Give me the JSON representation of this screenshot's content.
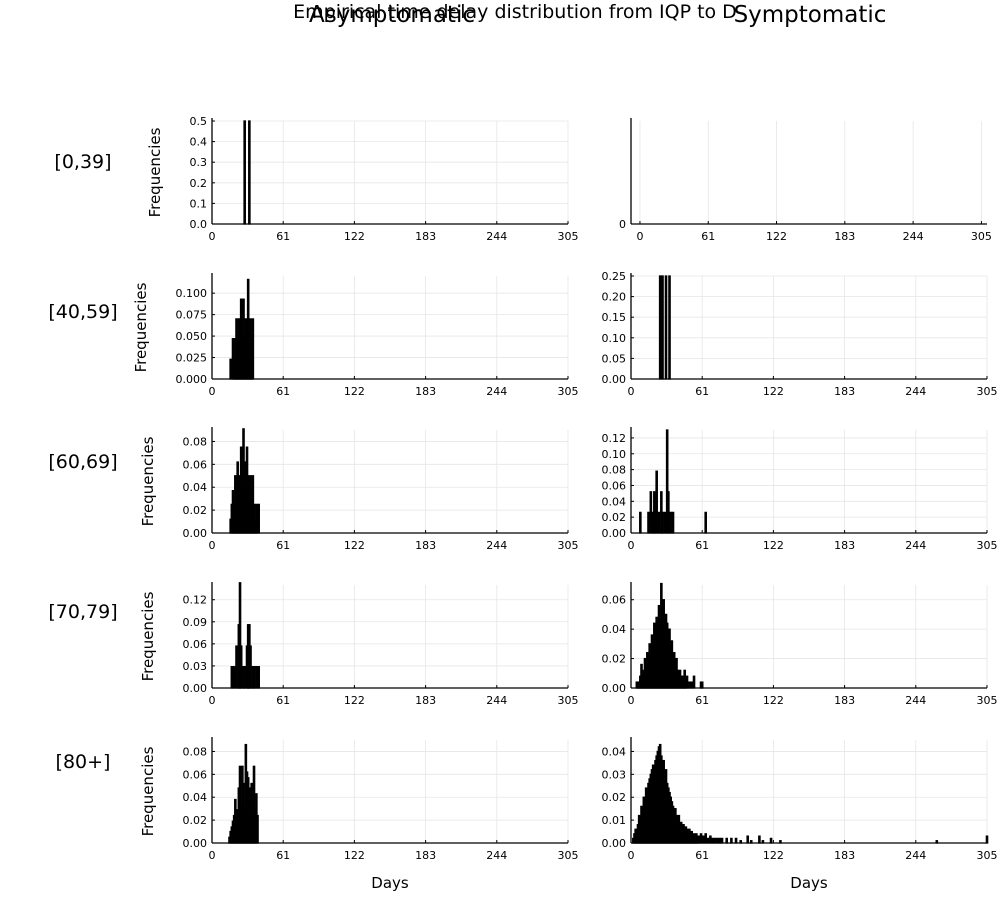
{
  "figure": {
    "title": "Empirical time delay distribution from IQP to D",
    "column_titles": [
      "Asymptomatic",
      "Symptomatic"
    ],
    "row_labels": [
      "[0,39]",
      "[40,59]",
      "[60,69]",
      "[70,79]",
      "[80+]"
    ],
    "ylabel": "Frequencies",
    "xlabel": "Days"
  },
  "style": {
    "bar_color": "#000000",
    "grid_color": "#e6e6e6",
    "axis_color": "#000000"
  },
  "chart_data": [
    {
      "type": "bar",
      "row_label": "[0,39]",
      "column_title": "Asymptomatic",
      "xlim": [
        0,
        305
      ],
      "ylim": [
        0,
        0.5
      ],
      "xticks": [
        0,
        61,
        122,
        183,
        244,
        305
      ],
      "yticks": [
        0.0,
        0.1,
        0.2,
        0.3,
        0.4,
        0.5
      ],
      "ytick_labels": [
        "0.0",
        "0.1",
        "0.2",
        "0.3",
        "0.4",
        "0.5"
      ],
      "grid": true,
      "ylabel": "Frequencies",
      "xlabel": "",
      "x": [
        28,
        32
      ],
      "values": [
        0.5,
        0.5
      ]
    },
    {
      "type": "bar",
      "row_label": "[0,39]",
      "column_title": "Symptomatic",
      "xlim": [
        -8,
        310
      ],
      "ylim": [
        0,
        1
      ],
      "xticks": [
        0,
        61,
        122,
        183,
        244,
        305
      ],
      "yticks": [
        0
      ],
      "ytick_labels": [
        "0"
      ],
      "grid": true,
      "ylabel": "",
      "xlabel": "",
      "x": [],
      "values": []
    },
    {
      "type": "bar",
      "row_label": "[40,59]",
      "column_title": "Asymptomatic",
      "xlim": [
        0,
        305
      ],
      "ylim": [
        0,
        0.12
      ],
      "xticks": [
        0,
        61,
        122,
        183,
        244,
        305
      ],
      "yticks": [
        0.0,
        0.025,
        0.05,
        0.075,
        0.1
      ],
      "ytick_labels": [
        "0.000",
        "0.025",
        "0.050",
        "0.075",
        "0.100"
      ],
      "grid": true,
      "ylabel": "Frequencies",
      "xlabel": "",
      "x": [
        16,
        18,
        19,
        20,
        21,
        22,
        23,
        24,
        25,
        26,
        27,
        28,
        29,
        30,
        31,
        32,
        33,
        34,
        35
      ],
      "values": [
        0.023,
        0.047,
        0.023,
        0.047,
        0.07,
        0.047,
        0.07,
        0.023,
        0.093,
        0.047,
        0.093,
        0.047,
        0.07,
        0.047,
        0.116,
        0.023,
        0.07,
        0.047,
        0.07
      ]
    },
    {
      "type": "bar",
      "row_label": "[40,59]",
      "column_title": "Symptomatic",
      "xlim": [
        0,
        305
      ],
      "ylim": [
        0,
        0.25
      ],
      "xticks": [
        0,
        61,
        122,
        183,
        244,
        305
      ],
      "yticks": [
        0.0,
        0.05,
        0.1,
        0.15,
        0.2,
        0.25
      ],
      "ytick_labels": [
        "0.00",
        "0.05",
        "0.10",
        "0.15",
        "0.20",
        "0.25"
      ],
      "grid": true,
      "ylabel": "",
      "xlabel": "",
      "x": [
        25,
        27,
        30,
        33
      ],
      "values": [
        0.25,
        0.25,
        0.25,
        0.25
      ]
    },
    {
      "type": "bar",
      "row_label": "[60,69]",
      "column_title": "Asymptomatic",
      "xlim": [
        0,
        305
      ],
      "ylim": [
        0,
        0.09
      ],
      "xticks": [
        0,
        61,
        122,
        183,
        244,
        305
      ],
      "yticks": [
        0.0,
        0.02,
        0.04,
        0.06,
        0.08
      ],
      "ytick_labels": [
        "0.00",
        "0.02",
        "0.04",
        "0.06",
        "0.08"
      ],
      "grid": true,
      "ylabel": "Frequencies",
      "xlabel": "",
      "x": [
        16,
        17,
        18,
        19,
        20,
        21,
        22,
        23,
        24,
        25,
        26,
        27,
        28,
        29,
        30,
        31,
        32,
        33,
        34,
        35,
        36,
        37,
        38,
        39,
        40
      ],
      "values": [
        0.012,
        0.025,
        0.037,
        0.025,
        0.05,
        0.037,
        0.062,
        0.05,
        0.037,
        0.075,
        0.05,
        0.091,
        0.062,
        0.037,
        0.075,
        0.05,
        0.025,
        0.05,
        0.037,
        0.05,
        0.025,
        0.012,
        0.025,
        0.012,
        0.025
      ]
    },
    {
      "type": "bar",
      "row_label": "[60,69]",
      "column_title": "Symptomatic",
      "xlim": [
        0,
        305
      ],
      "ylim": [
        0,
        0.13
      ],
      "xticks": [
        0,
        61,
        122,
        183,
        244,
        305
      ],
      "yticks": [
        0.0,
        0.02,
        0.04,
        0.06,
        0.08,
        0.1,
        0.12
      ],
      "ytick_labels": [
        "0.00",
        "0.02",
        "0.04",
        "0.06",
        "0.08",
        "0.10",
        "0.12"
      ],
      "grid": true,
      "ylabel": "",
      "xlabel": "",
      "x": [
        8,
        15,
        17,
        19,
        20,
        22,
        24,
        26,
        27,
        29,
        31,
        32,
        34,
        36,
        64
      ],
      "values": [
        0.026,
        0.026,
        0.052,
        0.026,
        0.052,
        0.078,
        0.026,
        0.052,
        0.026,
        0.026,
        0.13,
        0.052,
        0.026,
        0.026,
        0.026
      ]
    },
    {
      "type": "bar",
      "row_label": "[70,79]",
      "column_title": "Asymptomatic",
      "xlim": [
        0,
        305
      ],
      "ylim": [
        0,
        0.14
      ],
      "xticks": [
        0,
        61,
        122,
        183,
        244,
        305
      ],
      "yticks": [
        0.0,
        0.03,
        0.06,
        0.09,
        0.12
      ],
      "ytick_labels": [
        "0.00",
        "0.03",
        "0.06",
        "0.09",
        "0.12"
      ],
      "grid": true,
      "ylabel": "Frequencies",
      "xlabel": "",
      "x": [
        17,
        19,
        21,
        23,
        24,
        25,
        27,
        28,
        30,
        31,
        32,
        33,
        35,
        36,
        38,
        40
      ],
      "values": [
        0.029,
        0.029,
        0.057,
        0.086,
        0.143,
        0.057,
        0.029,
        0.029,
        0.057,
        0.086,
        0.086,
        0.057,
        0.029,
        0.029,
        0.029,
        0.029
      ]
    },
    {
      "type": "bar",
      "row_label": "[70,79]",
      "column_title": "Symptomatic",
      "xlim": [
        0,
        305
      ],
      "ylim": [
        0,
        0.07
      ],
      "xticks": [
        0,
        61,
        122,
        183,
        244,
        305
      ],
      "yticks": [
        0.0,
        0.02,
        0.04,
        0.06
      ],
      "ytick_labels": [
        "0.00",
        "0.02",
        "0.04",
        "0.06"
      ],
      "grid": true,
      "ylabel": "",
      "xlabel": "",
      "x": [
        5,
        6,
        7,
        8,
        9,
        10,
        11,
        12,
        13,
        14,
        15,
        16,
        17,
        18,
        19,
        20,
        21,
        22,
        23,
        24,
        25,
        26,
        27,
        28,
        29,
        30,
        31,
        32,
        33,
        34,
        35,
        36,
        37,
        38,
        39,
        40,
        41,
        42,
        43,
        44,
        45,
        46,
        47,
        48,
        50,
        52,
        54,
        60,
        61
      ],
      "values": [
        0.004,
        0.004,
        0.004,
        0.008,
        0.016,
        0.008,
        0.012,
        0.02,
        0.016,
        0.024,
        0.02,
        0.03,
        0.024,
        0.036,
        0.028,
        0.044,
        0.036,
        0.048,
        0.04,
        0.056,
        0.048,
        0.071,
        0.052,
        0.06,
        0.04,
        0.05,
        0.044,
        0.036,
        0.04,
        0.028,
        0.032,
        0.02,
        0.024,
        0.016,
        0.02,
        0.012,
        0.008,
        0.012,
        0.008,
        0.008,
        0.004,
        0.012,
        0.004,
        0.008,
        0.004,
        0.004,
        0.008,
        0.004,
        0.004
      ]
    },
    {
      "type": "bar",
      "row_label": "[80+]",
      "column_title": "Asymptomatic",
      "xlim": [
        0,
        305
      ],
      "ylim": [
        0,
        0.09
      ],
      "xticks": [
        0,
        61,
        122,
        183,
        244,
        305
      ],
      "yticks": [
        0.0,
        0.02,
        0.04,
        0.06,
        0.08
      ],
      "ytick_labels": [
        "0.00",
        "0.02",
        "0.04",
        "0.06",
        "0.08"
      ],
      "grid": true,
      "ylabel": "Frequencies",
      "xlabel": "Days",
      "x": [
        15,
        16,
        17,
        18,
        19,
        20,
        21,
        22,
        23,
        24,
        25,
        26,
        27,
        28,
        29,
        30,
        31,
        32,
        33,
        34,
        35,
        36,
        37,
        38,
        39
      ],
      "values": [
        0.005,
        0.01,
        0.014,
        0.019,
        0.024,
        0.038,
        0.014,
        0.029,
        0.048,
        0.067,
        0.033,
        0.067,
        0.052,
        0.029,
        0.086,
        0.062,
        0.057,
        0.048,
        0.038,
        0.052,
        0.024,
        0.067,
        0.029,
        0.043,
        0.024
      ]
    },
    {
      "type": "bar",
      "row_label": "[80+]",
      "column_title": "Symptomatic",
      "xlim": [
        0,
        305
      ],
      "ylim": [
        0,
        0.045
      ],
      "xticks": [
        0,
        61,
        122,
        183,
        244,
        305
      ],
      "yticks": [
        0.0,
        0.01,
        0.02,
        0.03,
        0.04
      ],
      "ytick_labels": [
        "0.00",
        "0.01",
        "0.02",
        "0.03",
        "0.04"
      ],
      "grid": true,
      "ylabel": "",
      "xlabel": "Days",
      "x": [
        2,
        3,
        4,
        5,
        6,
        7,
        8,
        9,
        10,
        11,
        12,
        13,
        14,
        15,
        16,
        17,
        18,
        19,
        20,
        21,
        22,
        23,
        24,
        25,
        26,
        27,
        28,
        29,
        30,
        31,
        32,
        33,
        34,
        35,
        36,
        37,
        38,
        39,
        40,
        41,
        42,
        43,
        44,
        45,
        46,
        47,
        48,
        49,
        50,
        51,
        52,
        53,
        54,
        55,
        56,
        57,
        58,
        60,
        62,
        64,
        66,
        68,
        70,
        72,
        74,
        76,
        78,
        82,
        86,
        90,
        94,
        100,
        103,
        110,
        113,
        120,
        128,
        262,
        305
      ],
      "values": [
        0.002,
        0.004,
        0.006,
        0.004,
        0.008,
        0.012,
        0.01,
        0.016,
        0.014,
        0.02,
        0.018,
        0.024,
        0.022,
        0.026,
        0.028,
        0.03,
        0.032,
        0.034,
        0.03,
        0.036,
        0.038,
        0.04,
        0.042,
        0.043,
        0.038,
        0.034,
        0.036,
        0.03,
        0.032,
        0.026,
        0.024,
        0.022,
        0.02,
        0.018,
        0.016,
        0.014,
        0.015,
        0.012,
        0.01,
        0.012,
        0.008,
        0.009,
        0.006,
        0.008,
        0.005,
        0.007,
        0.006,
        0.004,
        0.006,
        0.004,
        0.005,
        0.003,
        0.004,
        0.003,
        0.004,
        0.002,
        0.003,
        0.004,
        0.003,
        0.004,
        0.002,
        0.003,
        0.002,
        0.002,
        0.002,
        0.002,
        0.002,
        0.002,
        0.002,
        0.002,
        0.001,
        0.003,
        0.001,
        0.003,
        0.001,
        0.002,
        0.001,
        0.001,
        0.003
      ]
    }
  ]
}
